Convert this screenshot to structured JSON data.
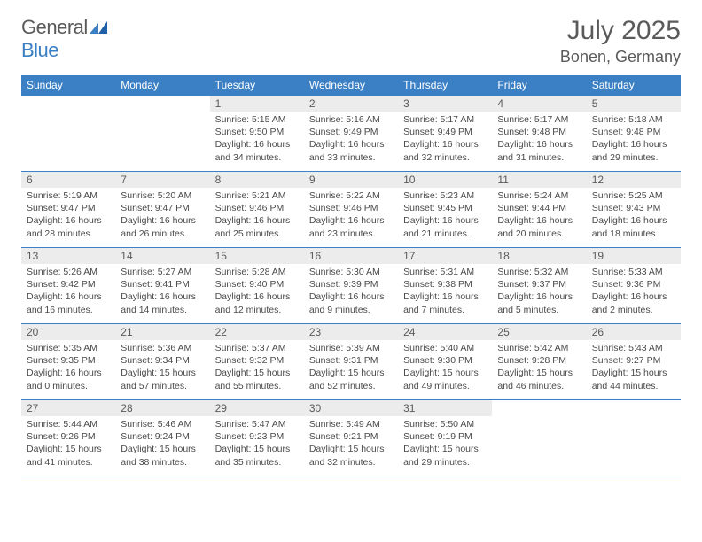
{
  "logo": {
    "word1": "General",
    "word2": "Blue"
  },
  "title": "July 2025",
  "location": "Bonen, Germany",
  "colors": {
    "header_bg": "#3b7fc4",
    "header_fg": "#ffffff",
    "daynum_bg": "#ececec",
    "text": "#5a5a5a",
    "rule": "#3b7fc4"
  },
  "weekdays": [
    "Sunday",
    "Monday",
    "Tuesday",
    "Wednesday",
    "Thursday",
    "Friday",
    "Saturday"
  ],
  "first_weekday_index": 2,
  "days": [
    {
      "n": 1,
      "rise": "5:15 AM",
      "set": "9:50 PM",
      "dlh": 16,
      "dlm": 34
    },
    {
      "n": 2,
      "rise": "5:16 AM",
      "set": "9:49 PM",
      "dlh": 16,
      "dlm": 33
    },
    {
      "n": 3,
      "rise": "5:17 AM",
      "set": "9:49 PM",
      "dlh": 16,
      "dlm": 32
    },
    {
      "n": 4,
      "rise": "5:17 AM",
      "set": "9:48 PM",
      "dlh": 16,
      "dlm": 31
    },
    {
      "n": 5,
      "rise": "5:18 AM",
      "set": "9:48 PM",
      "dlh": 16,
      "dlm": 29
    },
    {
      "n": 6,
      "rise": "5:19 AM",
      "set": "9:47 PM",
      "dlh": 16,
      "dlm": 28
    },
    {
      "n": 7,
      "rise": "5:20 AM",
      "set": "9:47 PM",
      "dlh": 16,
      "dlm": 26
    },
    {
      "n": 8,
      "rise": "5:21 AM",
      "set": "9:46 PM",
      "dlh": 16,
      "dlm": 25
    },
    {
      "n": 9,
      "rise": "5:22 AM",
      "set": "9:46 PM",
      "dlh": 16,
      "dlm": 23
    },
    {
      "n": 10,
      "rise": "5:23 AM",
      "set": "9:45 PM",
      "dlh": 16,
      "dlm": 21
    },
    {
      "n": 11,
      "rise": "5:24 AM",
      "set": "9:44 PM",
      "dlh": 16,
      "dlm": 20
    },
    {
      "n": 12,
      "rise": "5:25 AM",
      "set": "9:43 PM",
      "dlh": 16,
      "dlm": 18
    },
    {
      "n": 13,
      "rise": "5:26 AM",
      "set": "9:42 PM",
      "dlh": 16,
      "dlm": 16
    },
    {
      "n": 14,
      "rise": "5:27 AM",
      "set": "9:41 PM",
      "dlh": 16,
      "dlm": 14
    },
    {
      "n": 15,
      "rise": "5:28 AM",
      "set": "9:40 PM",
      "dlh": 16,
      "dlm": 12
    },
    {
      "n": 16,
      "rise": "5:30 AM",
      "set": "9:39 PM",
      "dlh": 16,
      "dlm": 9
    },
    {
      "n": 17,
      "rise": "5:31 AM",
      "set": "9:38 PM",
      "dlh": 16,
      "dlm": 7
    },
    {
      "n": 18,
      "rise": "5:32 AM",
      "set": "9:37 PM",
      "dlh": 16,
      "dlm": 5
    },
    {
      "n": 19,
      "rise": "5:33 AM",
      "set": "9:36 PM",
      "dlh": 16,
      "dlm": 2
    },
    {
      "n": 20,
      "rise": "5:35 AM",
      "set": "9:35 PM",
      "dlh": 16,
      "dlm": 0
    },
    {
      "n": 21,
      "rise": "5:36 AM",
      "set": "9:34 PM",
      "dlh": 15,
      "dlm": 57
    },
    {
      "n": 22,
      "rise": "5:37 AM",
      "set": "9:32 PM",
      "dlh": 15,
      "dlm": 55
    },
    {
      "n": 23,
      "rise": "5:39 AM",
      "set": "9:31 PM",
      "dlh": 15,
      "dlm": 52
    },
    {
      "n": 24,
      "rise": "5:40 AM",
      "set": "9:30 PM",
      "dlh": 15,
      "dlm": 49
    },
    {
      "n": 25,
      "rise": "5:42 AM",
      "set": "9:28 PM",
      "dlh": 15,
      "dlm": 46
    },
    {
      "n": 26,
      "rise": "5:43 AM",
      "set": "9:27 PM",
      "dlh": 15,
      "dlm": 44
    },
    {
      "n": 27,
      "rise": "5:44 AM",
      "set": "9:26 PM",
      "dlh": 15,
      "dlm": 41
    },
    {
      "n": 28,
      "rise": "5:46 AM",
      "set": "9:24 PM",
      "dlh": 15,
      "dlm": 38
    },
    {
      "n": 29,
      "rise": "5:47 AM",
      "set": "9:23 PM",
      "dlh": 15,
      "dlm": 35
    },
    {
      "n": 30,
      "rise": "5:49 AM",
      "set": "9:21 PM",
      "dlh": 15,
      "dlm": 32
    },
    {
      "n": 31,
      "rise": "5:50 AM",
      "set": "9:19 PM",
      "dlh": 15,
      "dlm": 29
    }
  ],
  "labels": {
    "sunrise": "Sunrise:",
    "sunset": "Sunset:",
    "daylight_prefix": "Daylight:",
    "hours_word": "hours",
    "and_word": "and",
    "minutes_word": "minutes."
  }
}
